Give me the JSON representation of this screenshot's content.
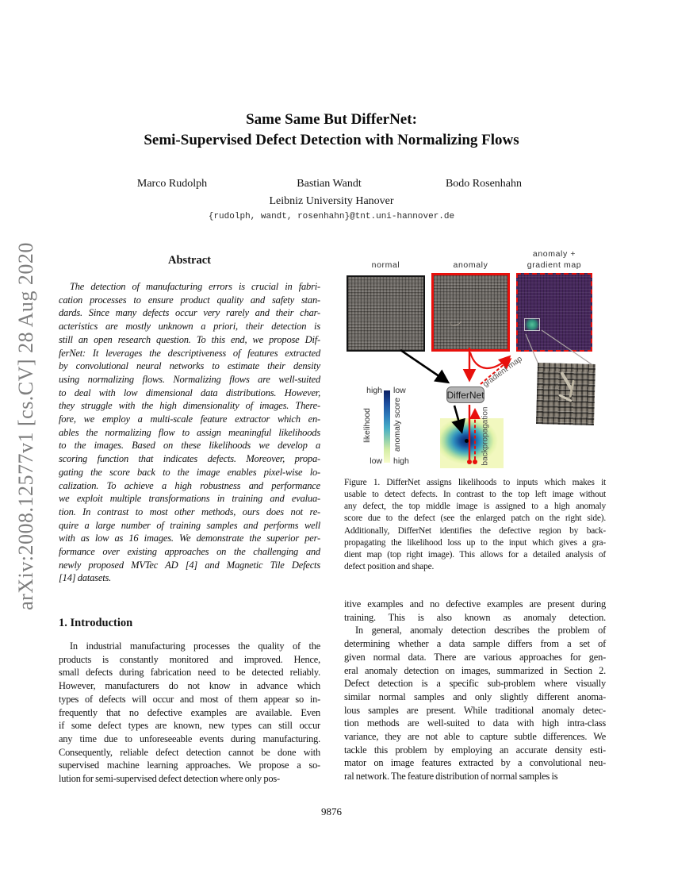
{
  "arxiv_label": "arXiv:2008.12577v1  [cs.CV]  28 Aug 2020",
  "title": {
    "line1": "Same Same But DifferNet:",
    "line2": "Semi-Supervised Defect Detection with Normalizing Flows"
  },
  "authors": [
    "Marco Rudolph",
    "Bastian Wandt",
    "Bodo Rosenhahn"
  ],
  "affiliation": "Leibniz University Hanover",
  "email": "{rudolph, wandt, rosenhahn}@tnt.uni-hannover.de",
  "abstract": {
    "heading": "Abstract",
    "lines": [
      "The detection of manufacturing errors is crucial in fabri-",
      "cation processes to ensure product quality and safety stan-",
      "dards. Since many defects occur very rarely and their char-",
      "acteristics are mostly unknown a priori, their detection is",
      "still an open research question. To this end, we propose Dif-",
      "ferNet: It leverages the descriptiveness of features extracted",
      "by convolutional neural networks to estimate their density",
      "using normalizing flows. Normalizing flows are well-suited",
      "to deal with low dimensional data distributions. However,",
      "they struggle with the high dimensionality of images. There-",
      "fore, we employ a multi-scale feature extractor which en-",
      "ables the normalizing flow to assign meaningful likelihoods",
      "to the images. Based on these likelihoods we develop a",
      "scoring function that indicates defects. Moreover, propa-",
      "gating the score back to the image enables pixel-wise lo-",
      "calization. To achieve a high robustness and performance",
      "we exploit multiple transformations in training and evalua-",
      "tion. In contrast to most other methods, ours does not re-",
      "quire a large number of training samples and performs well",
      "with as low as 16 images. We demonstrate the superior per-",
      "formance over existing approaches on the challenging and",
      "newly proposed MVTec AD [4] and Magnetic Tile Defects",
      "[14] datasets."
    ]
  },
  "introduction": {
    "heading": "1. Introduction",
    "lines": [
      "In industrial manufacturing processes the quality of the",
      "products is constantly monitored and improved. Hence,",
      "small defects during fabrication need to be detected reliably.",
      "However, manufacturers do not know in advance which",
      "types of defects will occur and most of them appear so in-",
      "frequently that no defective examples are available. Even",
      "if some defect types are known, new types can still occur",
      "any time due to unforeseeable events during manufacturing.",
      "Consequently, reliable defect detection cannot be done with",
      "supervised machine learning approaches. We propose a so-",
      "lution for semi-supervised defect detection where only pos-"
    ]
  },
  "right_column": {
    "p1_lines": [
      "itive examples and no defective examples are present during",
      "training. This is also known as anomaly detection.",
      ""
    ],
    "p2_lines": [
      "In general, anomaly detection describes the problem of",
      "determining whether a data sample differs from a set of",
      "given normal data. There are various approaches for gen-",
      "eral anomaly detection on images, summarized in Section 2.",
      "Defect detection is a specific sub-problem where visually",
      "similar normal samples and only slightly different anoma-",
      "lous samples are present. While traditional anomaly detec-",
      "tion methods are well-suited to data with high intra-class",
      "variance, they are not able to capture subtle differences. We",
      "tackle this problem by employing an accurate density esti-",
      "mator on image features extracted by a convolutional neu-",
      "ral network. The feature distribution of normal samples is"
    ]
  },
  "figure": {
    "labels": {
      "img1": "normal",
      "img2": "anomaly",
      "img3_line1": "anomaly +",
      "img3_line2": "gradient map"
    },
    "differnet_box_label": "DifferNet",
    "colorbar": {
      "top_left": "high",
      "top_right": "low",
      "bottom_left": "low",
      "bottom_right": "high",
      "left_axis_label": "likelihood",
      "right_axis_label": "anomaly score"
    },
    "annotations": {
      "gradient_map_arrow": "gradient map",
      "backpropagation_arrow": "backpropagation"
    },
    "caption_lines": [
      "Figure 1. DifferNet assigns likelihoods to inputs which makes it",
      "usable to detect defects. In contrast to the top left image without",
      "any defect, the top middle image is assigned to a high anomaly",
      "score due to the defect (see the enlarged patch on the right side).",
      "Additionally, DifferNet identifies the defective region by back-",
      "propagating the likelihood loss up to the input which gives a gra-",
      "dient map (top right image). This allows for a detailed analysis of",
      "defect position and shape."
    ]
  },
  "page_number": "9876",
  "colors": {
    "accent_red": "#e8100c",
    "gradient_map_purple": "#46285c",
    "defect_teal": "#2f8f7a",
    "differnet_box_gray": "#b5b5b5",
    "arxiv_gray": "#7e7e7e",
    "fabric_gray": "#6f6b66"
  }
}
